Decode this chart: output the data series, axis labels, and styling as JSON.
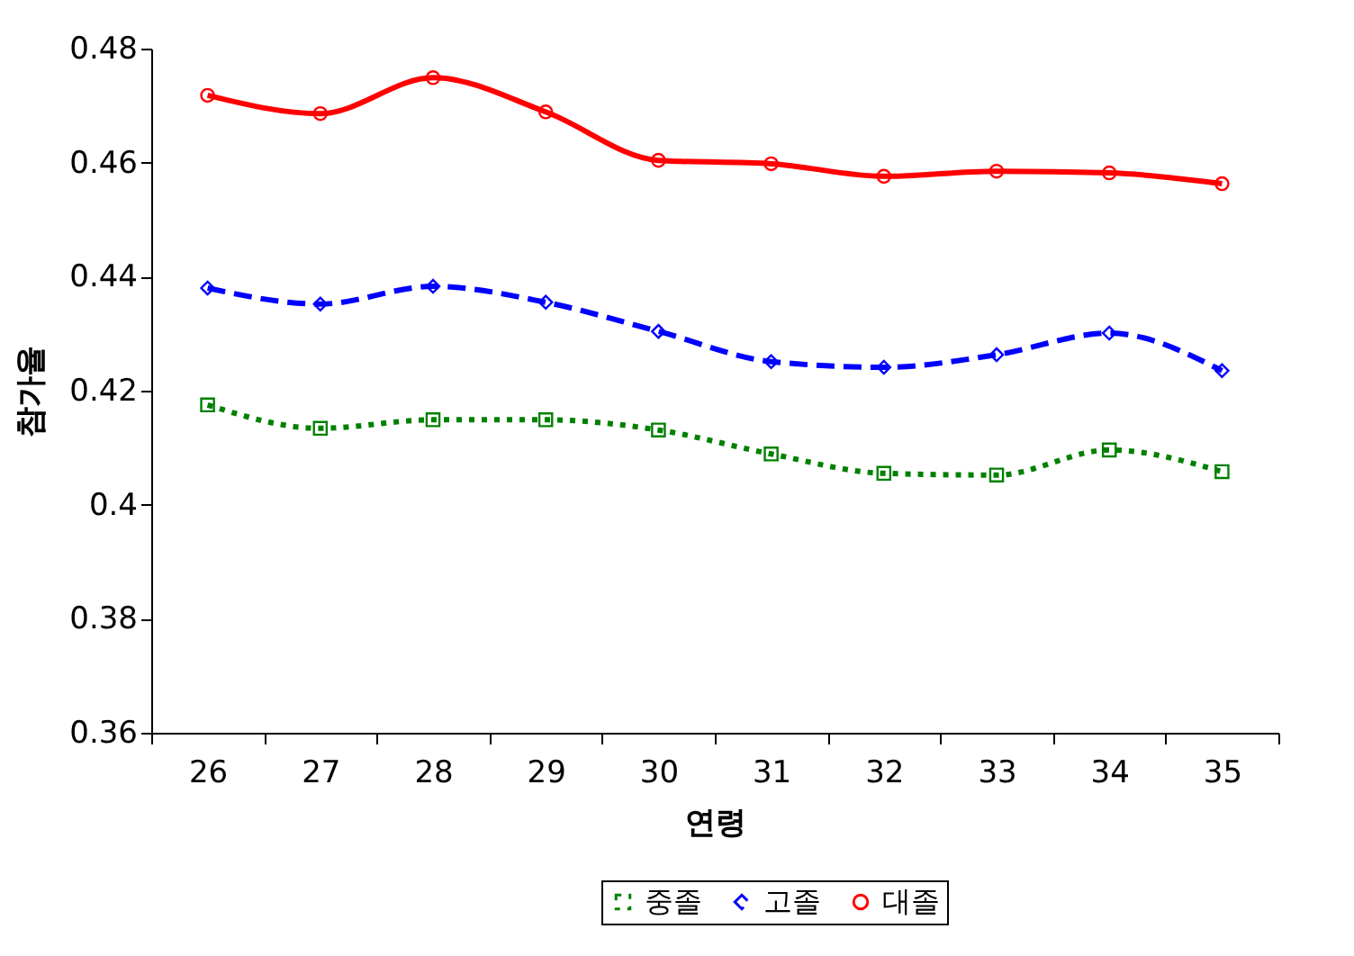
{
  "chart_data": {
    "type": "line",
    "xlabel": "연령",
    "ylabel": "참가율",
    "categories": [
      "26",
      "27",
      "28",
      "29",
      "30",
      "31",
      "32",
      "33",
      "34",
      "35"
    ],
    "ylim": [
      0.36,
      0.48
    ],
    "yticks": [
      0.36,
      0.38,
      0.4,
      0.42,
      0.44,
      0.46,
      0.48
    ],
    "grid": false,
    "legend": "bottom",
    "series": [
      {
        "name": "중졸",
        "color": "#008000",
        "marker": "square",
        "line_style": "dotted",
        "values": [
          0.4175,
          0.4134,
          0.4149,
          0.4149,
          0.4131,
          0.4089,
          0.4055,
          0.4052,
          0.4096,
          0.4058
        ]
      },
      {
        "name": "고졸",
        "color": "#0000ff",
        "marker": "diamond",
        "line_style": "dashed",
        "values": [
          0.438,
          0.4352,
          0.4383,
          0.4355,
          0.4304,
          0.4251,
          0.4241,
          0.4263,
          0.4301,
          0.4235
        ]
      },
      {
        "name": "대졸",
        "color": "#ff0000",
        "marker": "circle",
        "line_style": "solid",
        "values": [
          0.4718,
          0.4686,
          0.4749,
          0.4689,
          0.4604,
          0.4598,
          0.4576,
          0.4585,
          0.4582,
          0.4563
        ]
      }
    ]
  }
}
